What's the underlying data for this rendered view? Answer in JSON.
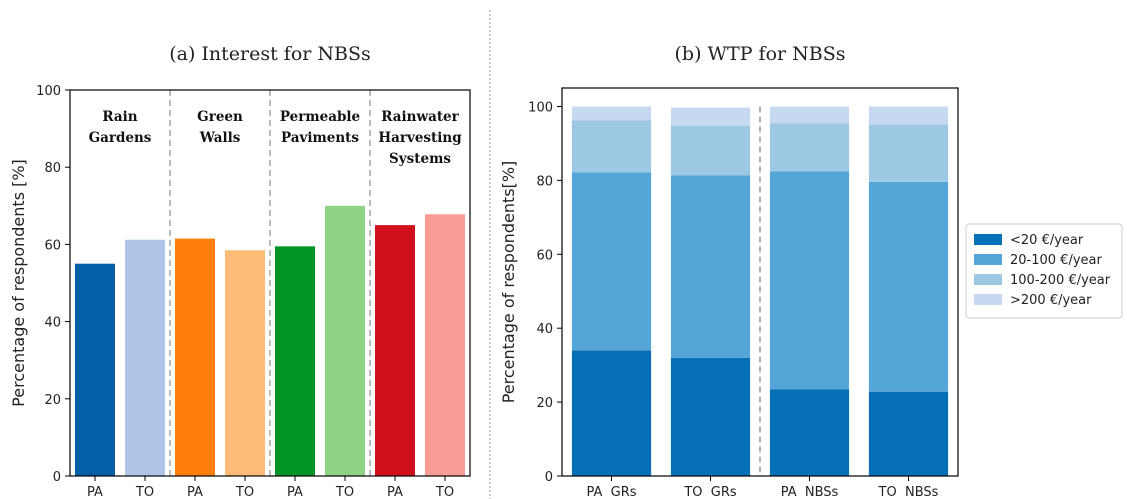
{
  "chart_data": [
    {
      "type": "bar",
      "title": "(a) Interest for NBSs",
      "xlabel": "",
      "ylabel": "Percentage of respondents [%]",
      "ylim": [
        0,
        100
      ],
      "yticks": [
        0,
        20,
        40,
        60,
        80,
        100
      ],
      "grid": false,
      "bars": [
        {
          "label": "PA",
          "value": 55,
          "color": "#045fa7"
        },
        {
          "label": "TO",
          "value": 61.2,
          "color": "#aec5e8"
        },
        {
          "label": "PA",
          "value": 61.5,
          "color": "#ff7f0e"
        },
        {
          "label": "TO",
          "value": 58.5,
          "color": "#ffbb78"
        },
        {
          "label": "PA",
          "value": 59.5,
          "color": "#009524"
        },
        {
          "label": "TO",
          "value": 70,
          "color": "#8fd486"
        },
        {
          "label": "PA",
          "value": 65,
          "color": "#d1101e"
        },
        {
          "label": "TO",
          "value": 67.8,
          "color": "#fb9b96"
        }
      ],
      "groups": [
        {
          "lines": [
            "Rain",
            "Gardens"
          ]
        },
        {
          "lines": [
            "Green",
            "Walls"
          ]
        },
        {
          "lines": [
            "Permeable",
            "Paviments"
          ]
        },
        {
          "lines": [
            "Rainwater",
            "Harvesting",
            "Systems"
          ]
        }
      ]
    },
    {
      "type": "bar",
      "stacked": true,
      "title": "(b) WTP for NBSs",
      "xlabel": "",
      "ylabel": "Percentage of respondents[%]",
      "ylim": [
        0,
        105
      ],
      "yticks": [
        0,
        20,
        40,
        60,
        80,
        100
      ],
      "grid": false,
      "categories": [
        "PA  GRs",
        "TO  GRs",
        "PA  NBSs",
        "TO  NBSs"
      ],
      "series": [
        {
          "name": "<20 €/year",
          "color": "#0570b5",
          "values": [
            34,
            32,
            23.5,
            22.8
          ]
        },
        {
          "name": "20-100 €/year",
          "color": "#56a5d8",
          "values": [
            48.2,
            49.4,
            58.9,
            56.8
          ]
        },
        {
          "name": "100-200 €/year",
          "color": "#9cc8e4",
          "values": [
            14,
            13.4,
            13,
            15.5
          ]
        },
        {
          "name": ">200 €/year",
          "color": "#c6d9f0",
          "values": [
            3.8,
            4.9,
            4.6,
            4.9
          ]
        }
      ],
      "legend_position": "right"
    }
  ]
}
